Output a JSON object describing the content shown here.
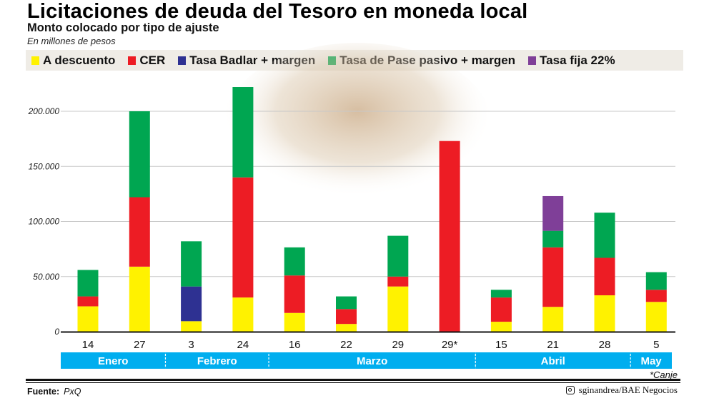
{
  "header": {
    "title": "Licitaciones de deuda del Tesoro en moneda local",
    "subtitle": "Monto colocado por tipo de ajuste",
    "units": "En millones de pesos"
  },
  "colors": {
    "A descuento": "#fff200",
    "CER": "#ed1c24",
    "Tasa Badlar + margen": "#2e3192",
    "Tasa de Pase pasivo + margen": "#00a651",
    "Tasa fija 22%": "#7f3f98",
    "month_band": "#00aeef"
  },
  "chart_data": {
    "type": "bar",
    "stacked": true,
    "title": "Licitaciones de deuda del Tesoro en moneda local",
    "subtitle": "Monto colocado por tipo de ajuste",
    "ylabel": "En millones de pesos",
    "ylim": [
      0,
      225000
    ],
    "yticks": [
      0,
      50000,
      100000,
      150000,
      200000
    ],
    "ytick_labels": [
      "0",
      "50.000",
      "100.000",
      "150.000",
      "200.000"
    ],
    "grid": true,
    "legend": "top",
    "categories": [
      "14",
      "27",
      "3",
      "24",
      "16",
      "22",
      "29",
      "29*",
      "15",
      "21",
      "28",
      "5"
    ],
    "months": [
      {
        "label": "Enero",
        "span": 2
      },
      {
        "label": "Febrero",
        "span": 2
      },
      {
        "label": "Marzo",
        "span": 4
      },
      {
        "label": "Abril",
        "span": 3
      },
      {
        "label": "May",
        "span": 1
      }
    ],
    "series": [
      {
        "name": "A descuento",
        "values": [
          23000,
          59000,
          9500,
          31000,
          17000,
          7000,
          41000,
          0,
          9000,
          22500,
          33000,
          27000
        ]
      },
      {
        "name": "CER",
        "values": [
          9000,
          63000,
          0,
          109000,
          34000,
          13500,
          9000,
          173000,
          22000,
          54000,
          34000,
          11000
        ]
      },
      {
        "name": "Tasa Badlar + margen",
        "values": [
          0,
          0,
          31500,
          0,
          0,
          0,
          0,
          0,
          0,
          0,
          0,
          0
        ]
      },
      {
        "name": "Tasa de Pase pasivo + margen",
        "values": [
          24000,
          78000,
          41000,
          82000,
          25500,
          11500,
          37000,
          0,
          7000,
          15000,
          41000,
          16000
        ]
      },
      {
        "name": "Tasa fija 22%",
        "values": [
          0,
          0,
          0,
          0,
          0,
          0,
          0,
          0,
          0,
          31500,
          0,
          0
        ]
      }
    ]
  },
  "footer": {
    "note": "*Canje",
    "source_label": "Fuente:",
    "source": "PxQ",
    "credit": "sginandrea/BAE Negocios"
  }
}
